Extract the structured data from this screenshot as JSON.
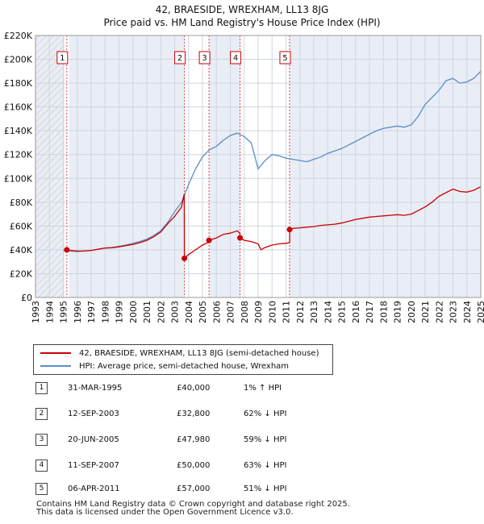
{
  "title_line1": "42, BRAESIDE, WREXHAM, LL13 8JG",
  "title_line2": "Price paid vs. HM Land Registry's House Price Index (HPI)",
  "chart_data": {
    "type": "line",
    "xlim": [
      1993,
      2025
    ],
    "ylim": [
      0,
      220000
    ],
    "y_ticks": [
      0,
      20000,
      40000,
      60000,
      80000,
      100000,
      120000,
      140000,
      160000,
      180000,
      200000,
      220000
    ],
    "y_tick_labels": [
      "£0",
      "£20K",
      "£40K",
      "£60K",
      "£80K",
      "£100K",
      "£120K",
      "£140K",
      "£160K",
      "£180K",
      "£200K",
      "£220K"
    ],
    "x_tick_labels": [
      "1993",
      "1994",
      "1995",
      "1996",
      "1997",
      "1998",
      "1999",
      "2000",
      "2001",
      "2002",
      "2003",
      "2004",
      "2005",
      "2006",
      "2007",
      "2008",
      "2009",
      "2010",
      "2011",
      "2012",
      "2013",
      "2014",
      "2015",
      "2016",
      "2017",
      "2018",
      "2019",
      "2020",
      "2021",
      "2022",
      "2023",
      "2024",
      "2025"
    ],
    "series": [
      {
        "name": "42, BRAESIDE, WREXHAM, LL13 8JG (semi-detached house)",
        "color": "#cc0000",
        "x": [
          1995.25,
          1995.5,
          1996,
          1996.5,
          1997,
          1997.5,
          1998,
          1998.5,
          1999,
          1999.5,
          2000,
          2000.5,
          2001,
          2001.5,
          2002,
          2002.5,
          2003,
          2003.5,
          2003.69,
          2003.7,
          2004,
          2004.5,
          2005,
          2005.47,
          2005.48,
          2006,
          2006.5,
          2007,
          2007.5,
          2007.69,
          2007.7,
          2008,
          2008.5,
          2009,
          2009.2,
          2009.5,
          2010,
          2010.5,
          2011,
          2011.26,
          2011.27,
          2011.5,
          2012,
          2012.5,
          2013,
          2013.5,
          2014,
          2014.5,
          2015,
          2015.5,
          2016,
          2016.5,
          2017,
          2017.5,
          2018,
          2018.5,
          2019,
          2019.5,
          2020,
          2020.5,
          2021,
          2021.5,
          2022,
          2022.5,
          2023,
          2023.5,
          2024,
          2024.5,
          2025
        ],
        "y": [
          40000,
          39500,
          39000,
          39000,
          39500,
          40500,
          41500,
          41800,
          42500,
          43500,
          44500,
          46000,
          48000,
          51000,
          55000,
          62000,
          68000,
          76000,
          87000,
          32800,
          36000,
          40000,
          44000,
          46500,
          47980,
          50000,
          53000,
          54000,
          56000,
          54000,
          50000,
          48000,
          47000,
          45000,
          40000,
          42000,
          44000,
          45000,
          45500,
          46000,
          57000,
          58000,
          58500,
          59000,
          59500,
          60500,
          61000,
          61500,
          62500,
          64000,
          65500,
          66500,
          67500,
          68000,
          68500,
          69000,
          69500,
          69000,
          70000,
          73000,
          76000,
          80000,
          85000,
          88000,
          91000,
          89000,
          88500,
          90000,
          93000
        ]
      },
      {
        "name": "HPI: Average price, semi-detached house, Wrexham",
        "color": "#5b8dc8",
        "x": [
          1995,
          1995.5,
          1996,
          1996.5,
          1997,
          1997.5,
          1998,
          1998.5,
          1999,
          1999.5,
          2000,
          2000.5,
          2001,
          2001.5,
          2002,
          2002.5,
          2003,
          2003.5,
          2004,
          2004.5,
          2005,
          2005.5,
          2006,
          2006.5,
          2007,
          2007.5,
          2008,
          2008.5,
          2009,
          2009.5,
          2010,
          2010.5,
          2011,
          2011.5,
          2012,
          2012.5,
          2013,
          2013.5,
          2014,
          2014.5,
          2015,
          2015.5,
          2016,
          2016.5,
          2017,
          2017.5,
          2018,
          2018.5,
          2019,
          2019.5,
          2020,
          2020.5,
          2021,
          2021.5,
          2022,
          2022.5,
          2023,
          2023.5,
          2024,
          2024.5,
          2025
        ],
        "y": [
          39500,
          39000,
          38500,
          39000,
          39500,
          40500,
          41500,
          42000,
          43000,
          44000,
          45500,
          47000,
          49000,
          52000,
          56000,
          63000,
          72000,
          80000,
          95000,
          108000,
          118000,
          124000,
          127000,
          132000,
          136000,
          138000,
          135000,
          130000,
          108000,
          115000,
          120000,
          119000,
          117000,
          116000,
          115000,
          114000,
          116000,
          118000,
          121000,
          123000,
          125000,
          128000,
          131000,
          134000,
          137000,
          140000,
          142000,
          143000,
          144000,
          143000,
          145000,
          152000,
          162000,
          168000,
          174000,
          182000,
          184000,
          180000,
          181000,
          184000,
          190000
        ]
      }
    ],
    "events": [
      {
        "label": "1",
        "x": 1995.25,
        "y": 40000
      },
      {
        "label": "2",
        "x": 2003.7,
        "y": 32800
      },
      {
        "label": "3",
        "x": 2005.47,
        "y": 47980
      },
      {
        "label": "4",
        "x": 2007.7,
        "y": 50000
      },
      {
        "label": "5",
        "x": 2011.26,
        "y": 57000
      }
    ]
  },
  "legend": {
    "property": "42, BRAESIDE, WREXHAM, LL13 8JG (semi-detached house)",
    "hpi": "HPI: Average price, semi-detached house, Wrexham",
    "property_color": "#cc0000",
    "hpi_color": "#5b8dc8"
  },
  "transactions": [
    {
      "num": "1",
      "date": "31-MAR-1995",
      "price": "£40,000",
      "delta": "1% ↑ HPI"
    },
    {
      "num": "2",
      "date": "12-SEP-2003",
      "price": "£32,800",
      "delta": "62% ↓ HPI"
    },
    {
      "num": "3",
      "date": "20-JUN-2005",
      "price": "£47,980",
      "delta": "59% ↓ HPI"
    },
    {
      "num": "4",
      "date": "11-SEP-2007",
      "price": "£50,000",
      "delta": "63% ↓ HPI"
    },
    {
      "num": "5",
      "date": "06-APR-2011",
      "price": "£57,000",
      "delta": "51% ↓ HPI"
    }
  ],
  "footer_line1": "Contains HM Land Registry data © Crown copyright and database right 2025.",
  "footer_line2": "This data is licensed under the Open Government Licence v3.0."
}
